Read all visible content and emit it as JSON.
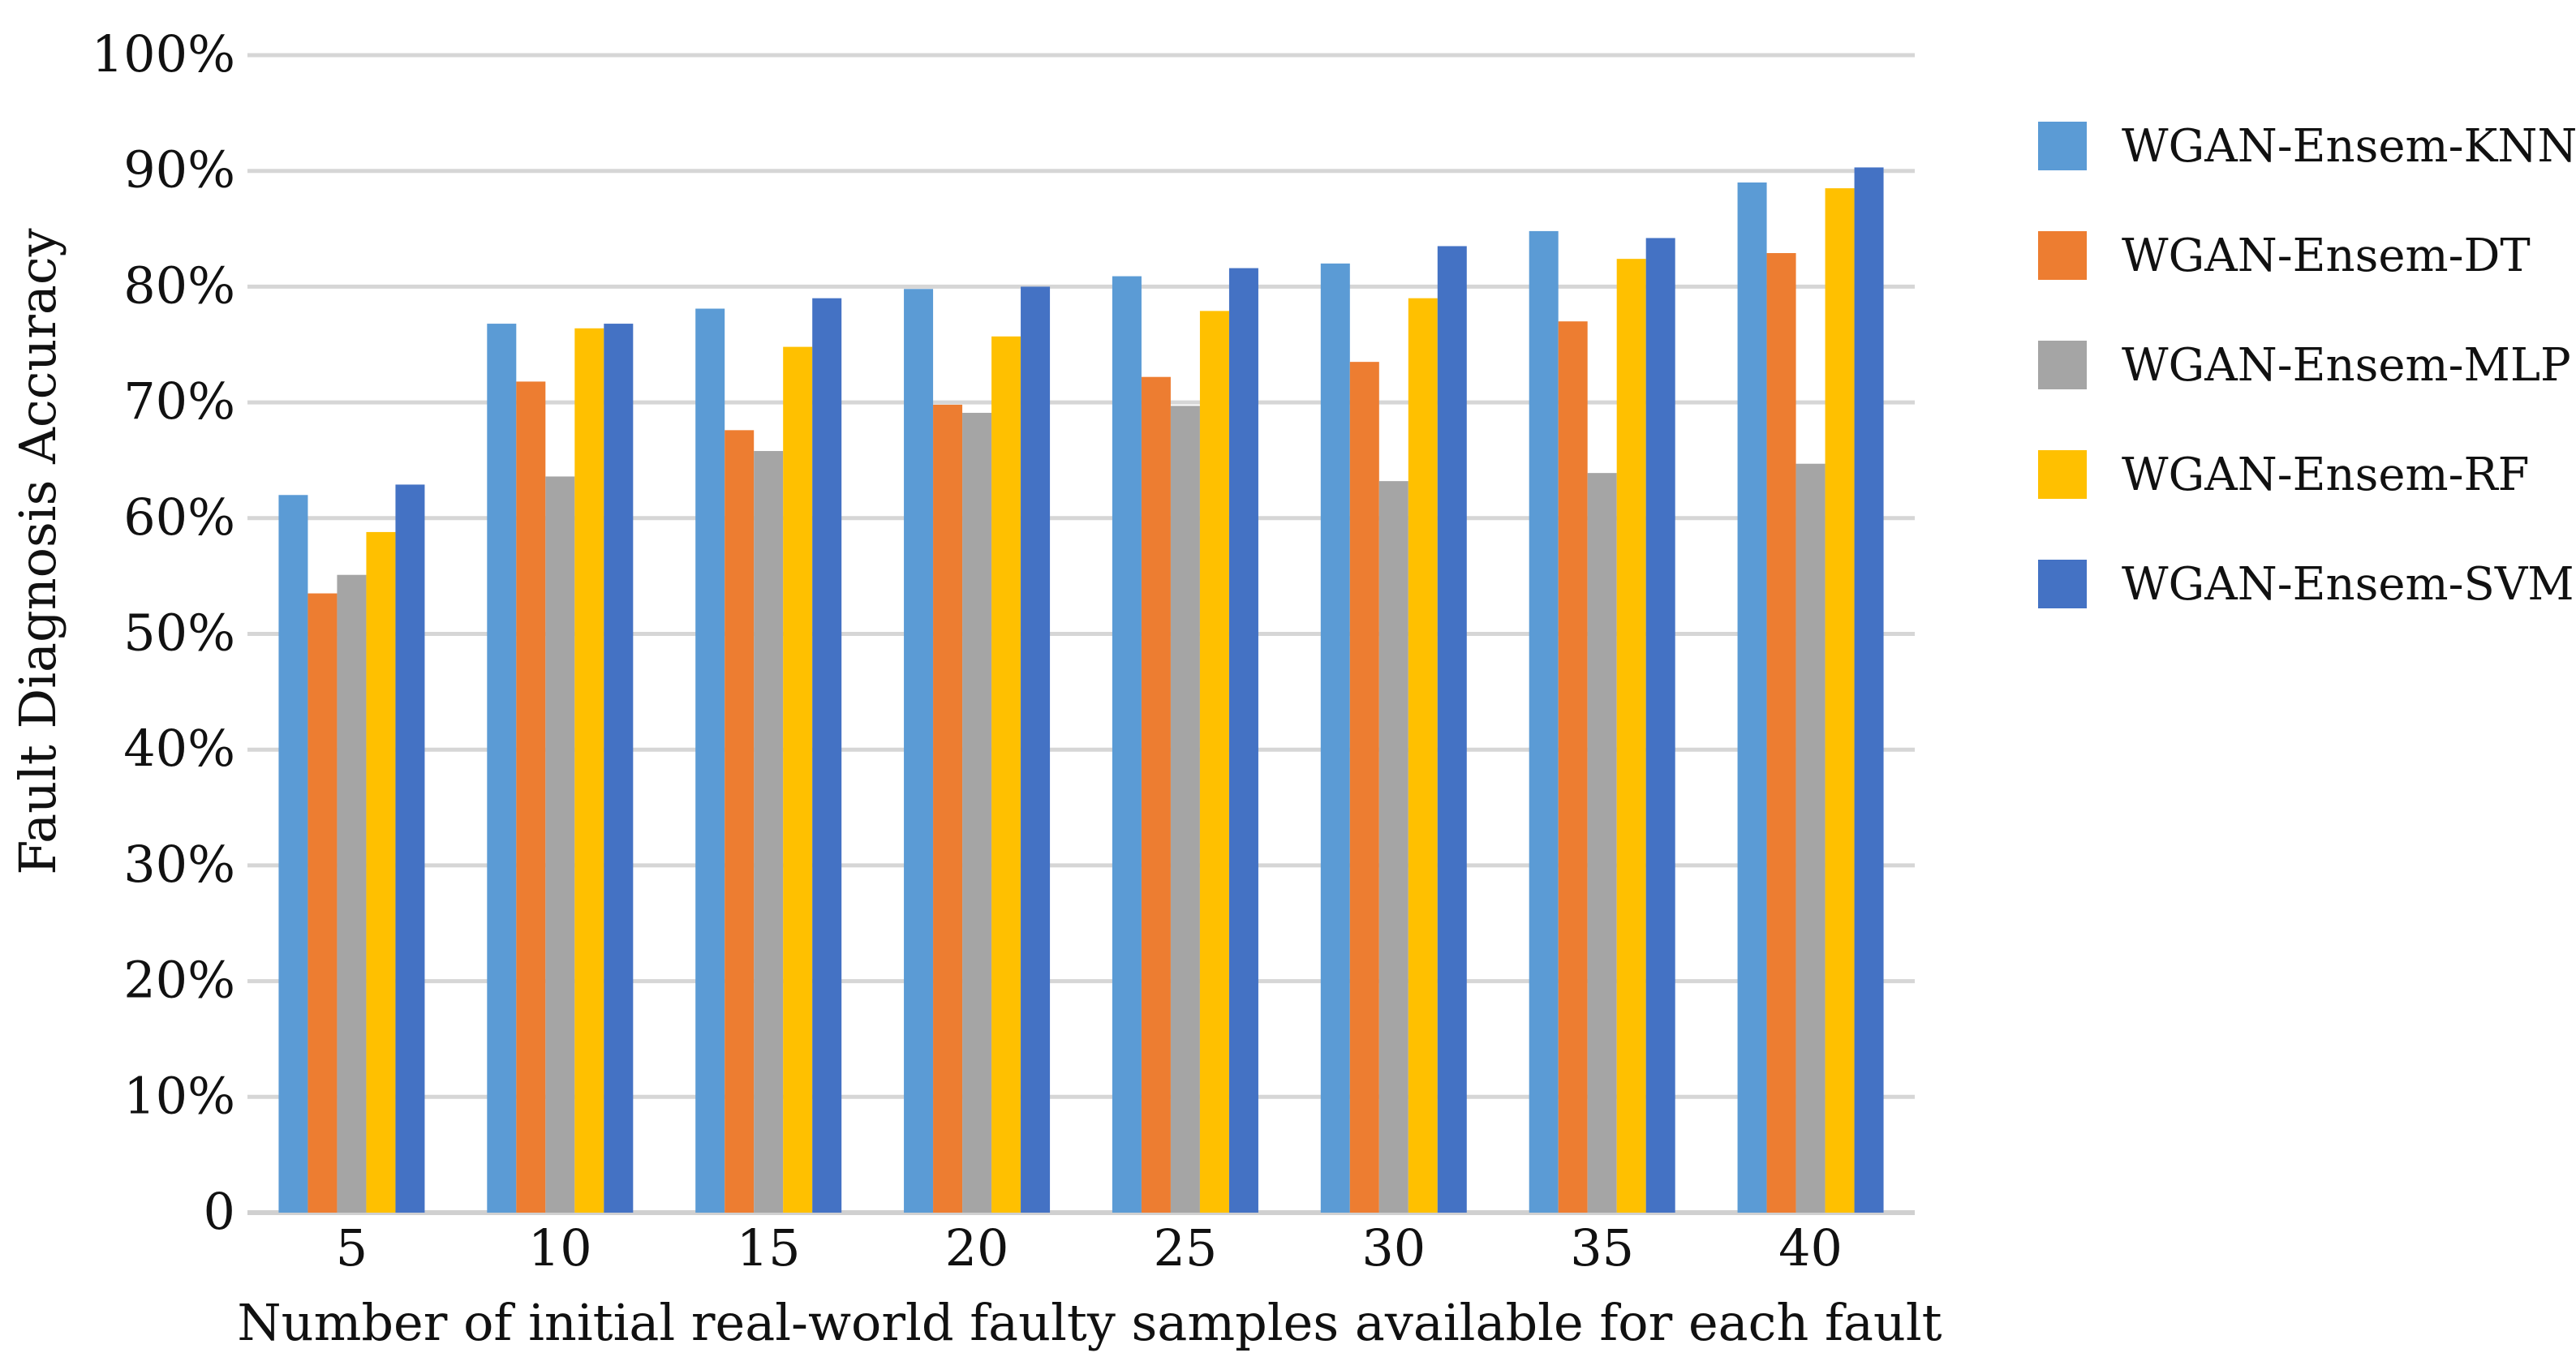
{
  "chart_data": {
    "type": "bar",
    "title": "",
    "xlabel": "Number of initial real-world faulty samples available for each fault",
    "ylabel": "Fault Diagnosis Accuracy",
    "ylim": [
      0,
      100
    ],
    "grid": true,
    "legend_position": "right",
    "y_ticks": [
      {
        "value": 0,
        "label": "0"
      },
      {
        "value": 10,
        "label": "10%"
      },
      {
        "value": 20,
        "label": "20%"
      },
      {
        "value": 30,
        "label": "30%"
      },
      {
        "value": 40,
        "label": "40%"
      },
      {
        "value": 50,
        "label": "50%"
      },
      {
        "value": 60,
        "label": "60%"
      },
      {
        "value": 70,
        "label": "70%"
      },
      {
        "value": 80,
        "label": "80%"
      },
      {
        "value": 90,
        "label": "90%"
      },
      {
        "value": 100,
        "label": "100%"
      }
    ],
    "categories": [
      "5",
      "10",
      "15",
      "20",
      "25",
      "30",
      "35",
      "40"
    ],
    "series": [
      {
        "name": "WGAN-Ensem-KNN",
        "color": "#5b9bd5",
        "values": [
          62.0,
          76.8,
          78.1,
          79.8,
          80.9,
          82.0,
          84.8,
          89.0
        ]
      },
      {
        "name": "WGAN-Ensem-DT",
        "color": "#ed7d31",
        "values": [
          53.5,
          71.8,
          67.6,
          69.8,
          72.2,
          73.5,
          77.0,
          82.9
        ]
      },
      {
        "name": "WGAN-Ensem-MLP",
        "color": "#a5a5a5",
        "values": [
          55.1,
          63.6,
          65.8,
          69.1,
          69.7,
          63.2,
          63.9,
          64.7
        ]
      },
      {
        "name": "WGAN-Ensem-RF",
        "color": "#ffc000",
        "values": [
          58.8,
          76.4,
          74.8,
          75.7,
          77.9,
          79.0,
          82.4,
          88.5
        ]
      },
      {
        "name": "WGAN-Ensem-SVM",
        "color": "#4472c4",
        "values": [
          62.9,
          76.8,
          79.0,
          80.0,
          81.6,
          83.5,
          84.2,
          90.3
        ]
      }
    ]
  }
}
